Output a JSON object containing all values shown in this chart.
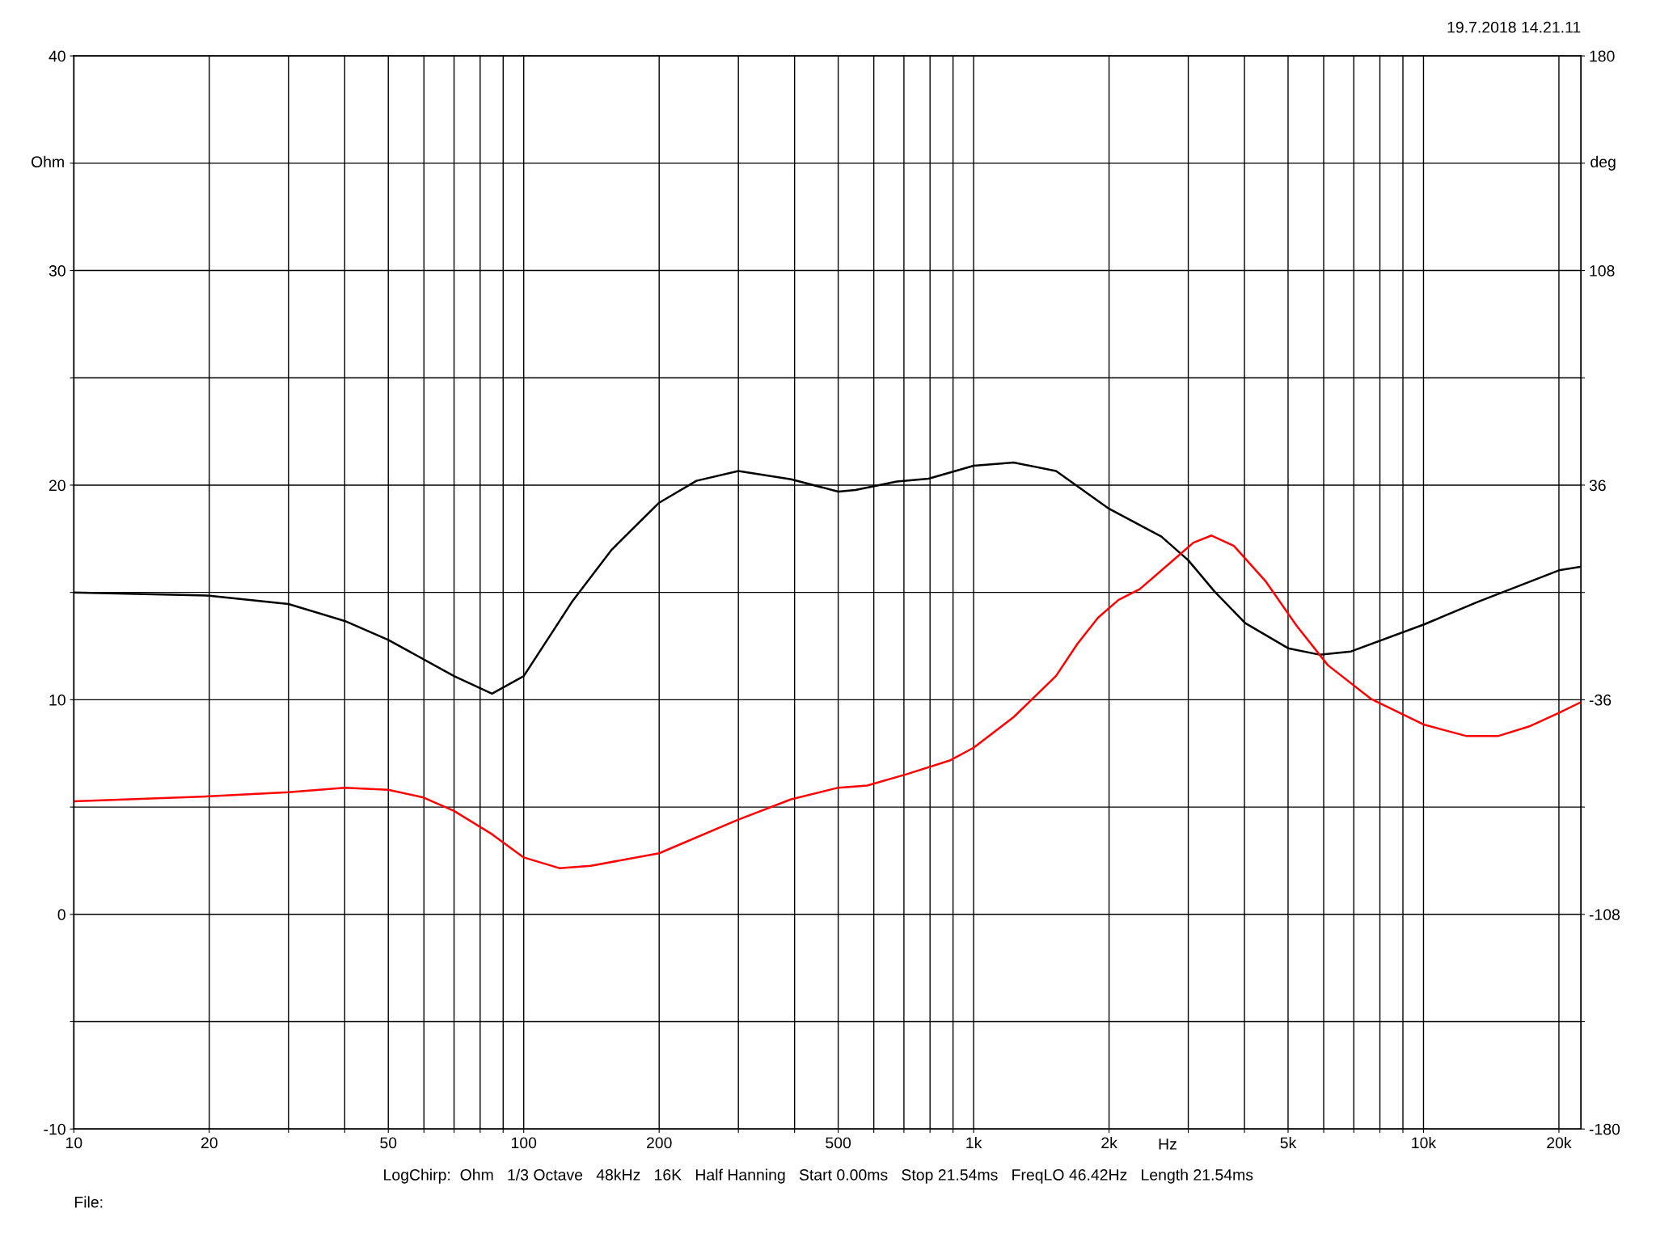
{
  "chart_data": {
    "type": "line",
    "xlabel": "Hz",
    "ylabel": "Ohm",
    "y2label": "deg",
    "log": "x",
    "grid": true,
    "marker": "none",
    "line_style": "solid",
    "xlim": [
      10,
      22390
    ],
    "ylim": [
      -10,
      40
    ],
    "y2lim": [
      -180,
      180
    ],
    "xticks": [
      10,
      20,
      {
        "value": 30,
        "label": null
      },
      {
        "value": 40,
        "label": null
      },
      50,
      {
        "value": 60,
        "label": null
      },
      {
        "value": 70,
        "label": null
      },
      {
        "value": 80,
        "label": null
      },
      {
        "value": 90,
        "label": null
      },
      100,
      200,
      {
        "value": 300,
        "label": null
      },
      {
        "value": 400,
        "label": null
      },
      500,
      {
        "value": 600,
        "label": null
      },
      {
        "value": 700,
        "label": null
      },
      {
        "value": 800,
        "label": null
      },
      {
        "value": 900,
        "label": null
      },
      {
        "value": 1000,
        "label": "1k"
      },
      {
        "value": 2000,
        "label": "2k"
      },
      {
        "value": 3000,
        "label": null
      },
      {
        "value": 4000,
        "label": null
      },
      {
        "value": 5000,
        "label": "5k"
      },
      {
        "value": 6000,
        "label": null
      },
      {
        "value": 7000,
        "label": null
      },
      {
        "value": 8000,
        "label": null
      },
      {
        "value": 9000,
        "label": null
      },
      {
        "value": 10000,
        "label": "10k"
      },
      {
        "value": 20000,
        "label": "20k"
      }
    ],
    "yticks": [
      -10,
      {
        "value": -5,
        "label": null
      },
      0,
      {
        "value": 5,
        "label": null
      },
      10,
      {
        "value": 15,
        "label": null
      },
      20,
      {
        "value": 25,
        "label": null
      },
      30,
      {
        "value": 35,
        "label": null
      },
      40
    ],
    "y2ticks": [
      -180,
      {
        "value": -144,
        "label": null
      },
      -108,
      {
        "value": -72,
        "label": null
      },
      -36,
      {
        "value": 0,
        "label": null
      },
      36,
      {
        "value": 72,
        "label": null
      },
      108,
      {
        "value": 144,
        "label": null
      },
      180
    ],
    "annotations": [
      "19.7.2018 14.21.11",
      "LogChirp:  Ohm   1/3 Octave   48kHz   16K   Half Hanning   Start 0.00ms   Stop 21.54ms   FreqLO 46.42Hz   Length 21.54ms",
      "File:"
    ],
    "series": [
      {
        "color": "#000000",
        "x": [
          10,
          20,
          30,
          40,
          50,
          70,
          85,
          100,
          128,
          157,
          200,
          242,
          300,
          393,
          500,
          546,
          675,
          794,
          1000,
          1228,
          1525,
          2000,
          2615,
          3000,
          3430,
          4016,
          5000,
          5870,
          6900,
          10000,
          13200,
          20000,
          22390
        ],
        "values": [
          15.0,
          14.85,
          14.46,
          13.67,
          12.79,
          11.1,
          10.28,
          11.1,
          14.56,
          17.0,
          19.18,
          20.2,
          20.66,
          20.27,
          19.7,
          19.77,
          20.17,
          20.3,
          20.9,
          21.05,
          20.66,
          18.9,
          17.6,
          16.5,
          15.05,
          13.57,
          12.4,
          12.1,
          12.25,
          13.5,
          14.56,
          16.03,
          16.2
        ]
      },
      {
        "color": "#ff0000",
        "axis": "y2",
        "x": [
          10,
          20,
          30,
          40,
          50,
          59.6,
          70,
          85,
          100,
          120,
          141,
          200,
          300,
          393,
          500,
          580,
          713,
          888,
          1000,
          1228,
          1525,
          1700,
          1890,
          2100,
          2340,
          2700,
          3080,
          3380,
          3790,
          4450,
          5230,
          6130,
          7660,
          10000,
          12480,
          14630,
          17150,
          20000,
          22390
        ],
        "values": [
          -70.1,
          -68.4,
          -67,
          -65.5,
          -66.2,
          -68.7,
          -73.3,
          -81.1,
          -88.9,
          -92.5,
          -91.7,
          -87.5,
          -76.2,
          -69.4,
          -65.5,
          -64.8,
          -60.9,
          -56.3,
          -52.1,
          -41.8,
          -28,
          -17.3,
          -8.5,
          -2.5,
          1.1,
          9.2,
          16.7,
          19.1,
          15.6,
          3.9,
          -11.3,
          -24.4,
          -35.8,
          -44.3,
          -48.2,
          -48.2,
          -45,
          -40.4,
          -36.8
        ]
      }
    ]
  }
}
